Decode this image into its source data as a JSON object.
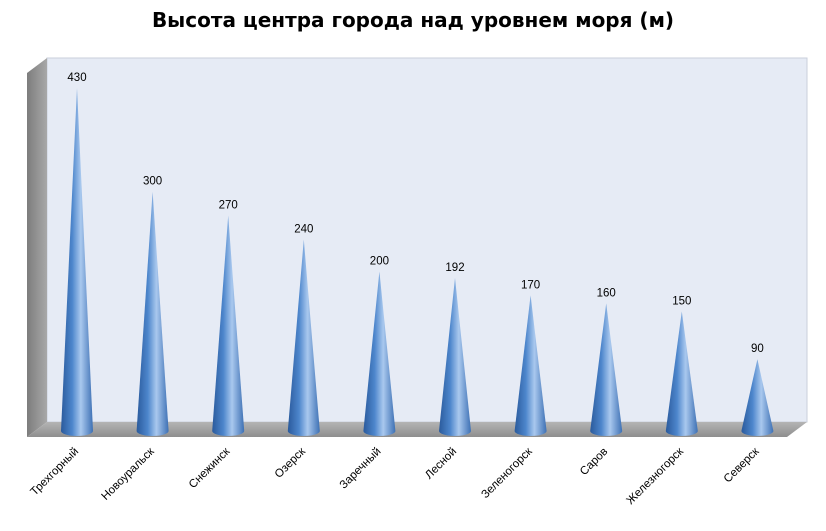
{
  "chart_data": {
    "type": "bar",
    "title": "Высота центра города над уровнем моря (м)",
    "categories": [
      "Трехгорный",
      "Новоуральск",
      "Снежинск",
      "Озерск",
      "Заречный",
      "Лесной",
      "Зеленогорск",
      "Саров",
      "Железногорск",
      "Северск"
    ],
    "values": [
      430,
      300,
      270,
      240,
      200,
      192,
      170,
      160,
      150,
      90
    ],
    "value_labels": [
      "430",
      "300",
      "270",
      "240",
      "200",
      "192",
      "170",
      "160",
      "150",
      "90"
    ],
    "bar_shape": "cone",
    "ylim": [
      0,
      440
    ],
    "grid": false,
    "legend": "none",
    "xlabel": "",
    "ylabel": "",
    "colors": {
      "cone_dark": "#2a5a9c",
      "cone_mid": "#4d86cc",
      "cone_light": "#a9c8ee",
      "plot_back": "#e6ebf5",
      "side_wall": "#8c8c8c",
      "floor": "#a6a6a6"
    }
  }
}
